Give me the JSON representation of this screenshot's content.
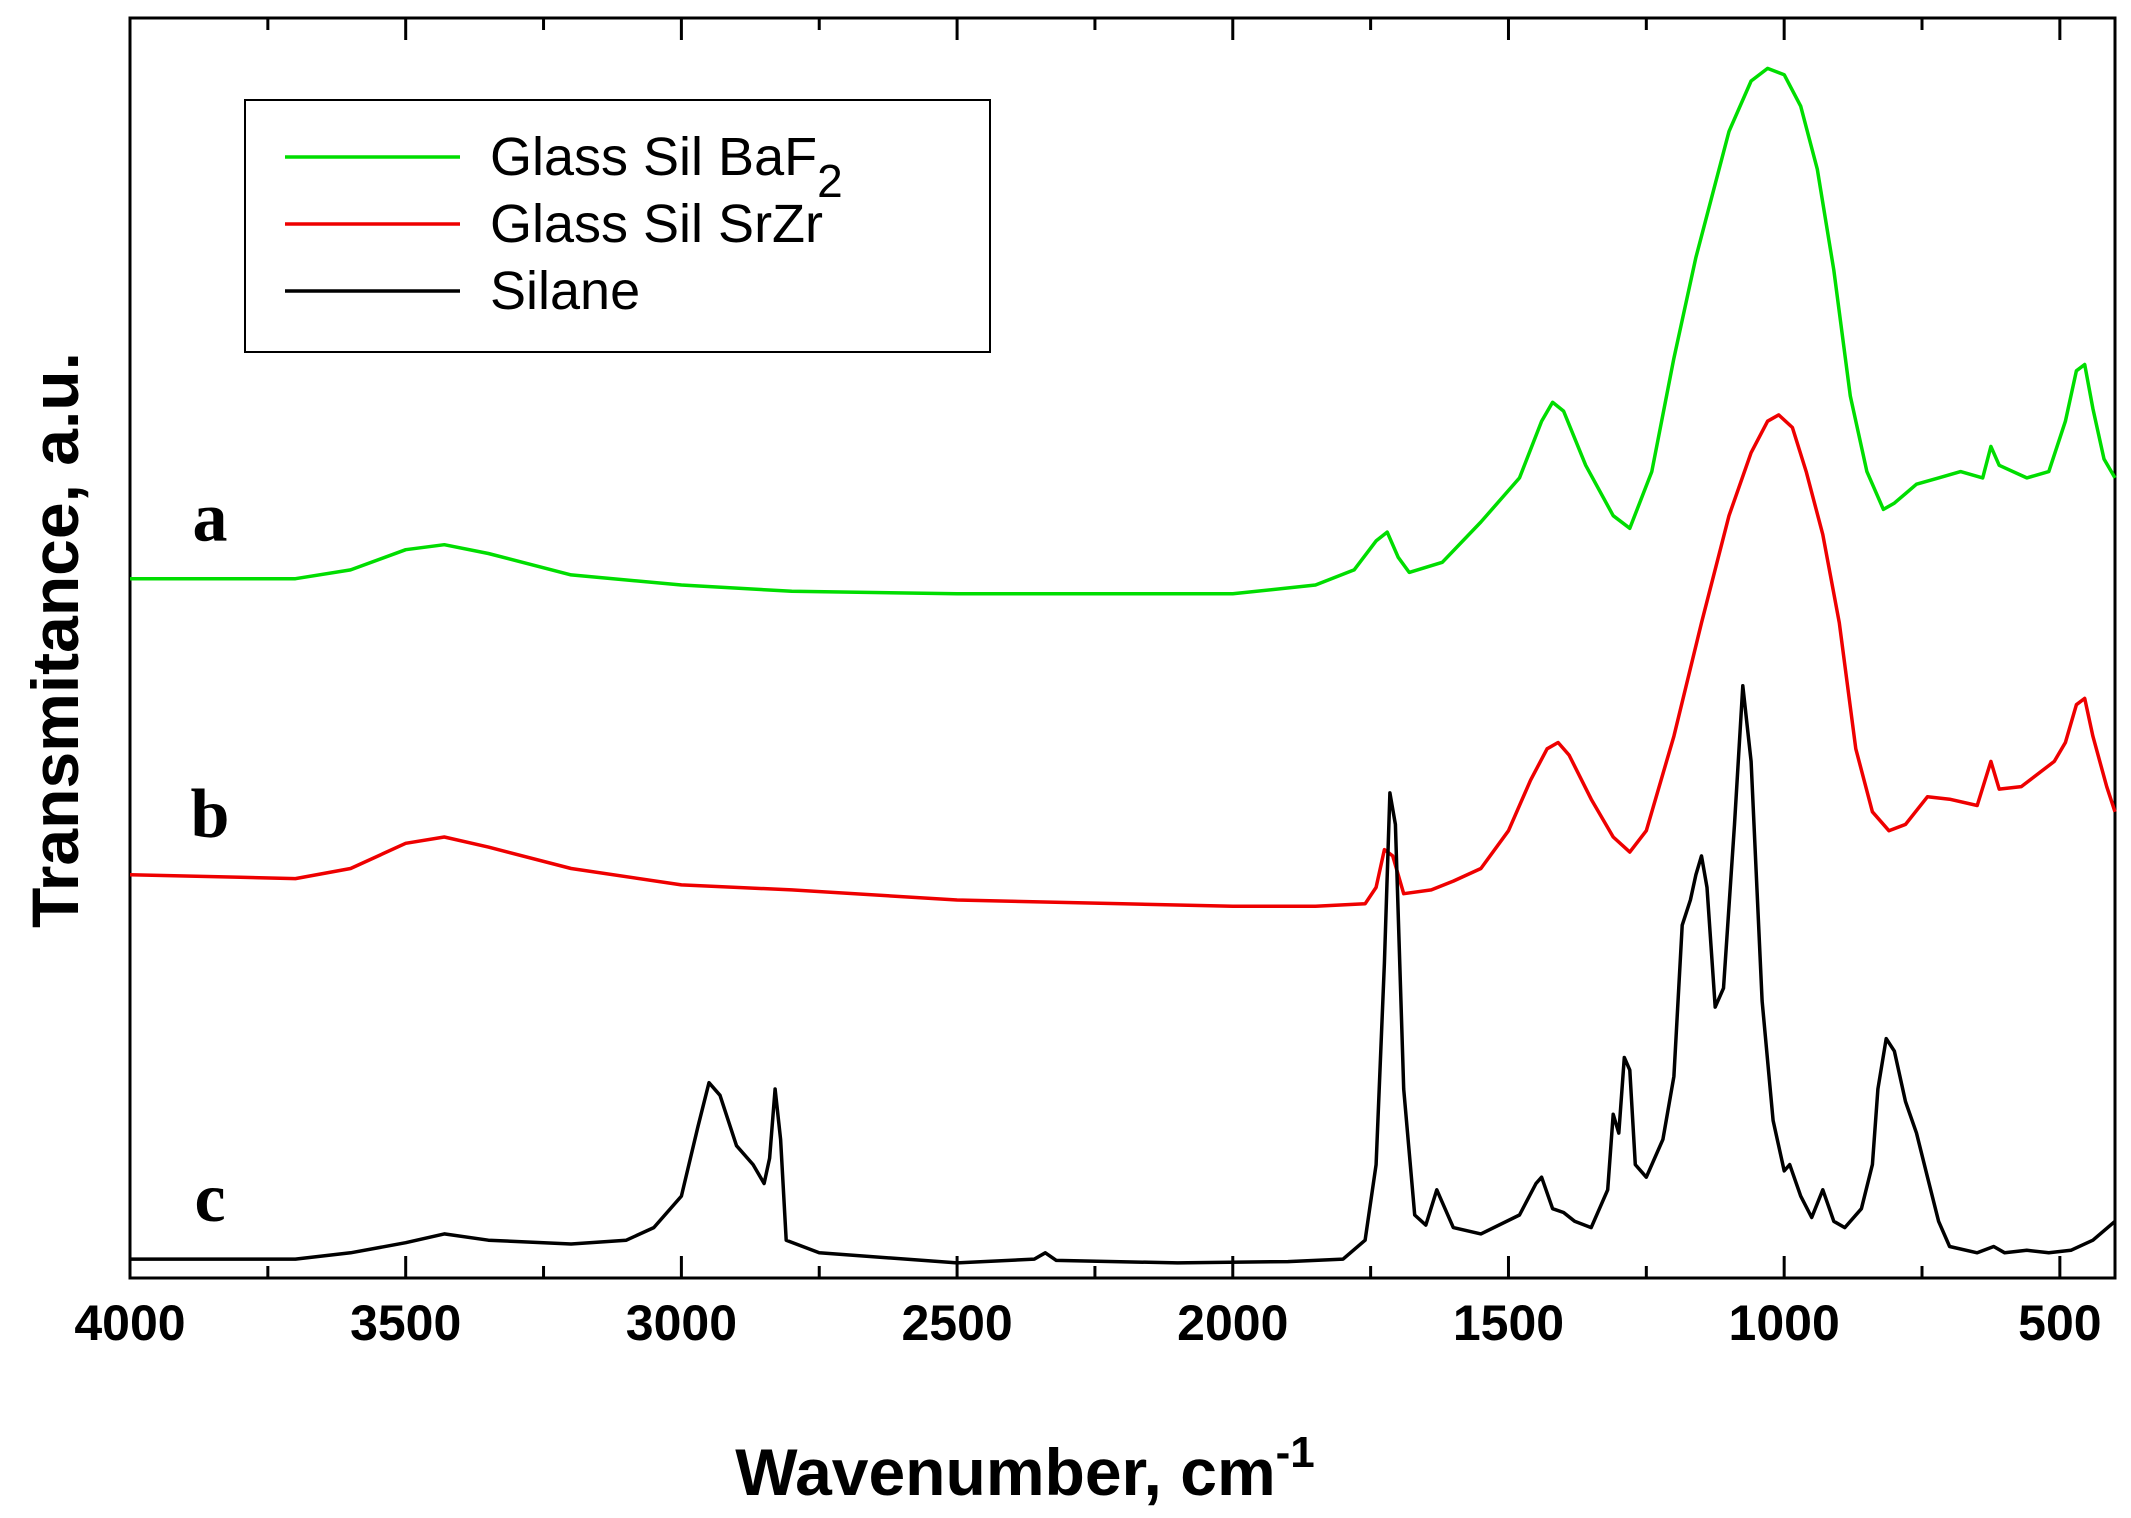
{
  "chart_data": {
    "type": "line",
    "title": "",
    "xlabel": "Wavenumber, cm",
    "xlabel_superscript": "-1",
    "ylabel": "Transmitance, a.u.",
    "xlim": [
      4000,
      400
    ],
    "ylim": [
      0,
      10
    ],
    "x_reversed": true,
    "grid": false,
    "legend_position": "top-left",
    "x_ticks": [
      4000,
      3500,
      3000,
      2500,
      2000,
      1500,
      1000,
      500
    ],
    "x_tick_labels": [
      "4000",
      "3500",
      "3000",
      "2500",
      "2000",
      "1500",
      "1000",
      "500"
    ],
    "series": [
      {
        "name": "Glass Sil BaF2",
        "legend_main": "Glass Sil BaF",
        "legend_sub": "2",
        "curve_label": "a",
        "color": "#00dd00",
        "points": [
          [
            4000,
            5.55
          ],
          [
            3800,
            5.55
          ],
          [
            3700,
            5.55
          ],
          [
            3600,
            5.62
          ],
          [
            3500,
            5.78
          ],
          [
            3430,
            5.82
          ],
          [
            3350,
            5.75
          ],
          [
            3200,
            5.58
          ],
          [
            3000,
            5.5
          ],
          [
            2800,
            5.45
          ],
          [
            2500,
            5.43
          ],
          [
            2200,
            5.43
          ],
          [
            2000,
            5.43
          ],
          [
            1850,
            5.5
          ],
          [
            1780,
            5.62
          ],
          [
            1740,
            5.85
          ],
          [
            1720,
            5.92
          ],
          [
            1700,
            5.72
          ],
          [
            1680,
            5.6
          ],
          [
            1620,
            5.68
          ],
          [
            1550,
            6.0
          ],
          [
            1480,
            6.35
          ],
          [
            1440,
            6.8
          ],
          [
            1420,
            6.95
          ],
          [
            1400,
            6.88
          ],
          [
            1360,
            6.45
          ],
          [
            1310,
            6.05
          ],
          [
            1280,
            5.95
          ],
          [
            1240,
            6.4
          ],
          [
            1200,
            7.3
          ],
          [
            1160,
            8.1
          ],
          [
            1100,
            9.1
          ],
          [
            1060,
            9.5
          ],
          [
            1030,
            9.6
          ],
          [
            1000,
            9.55
          ],
          [
            970,
            9.3
          ],
          [
            940,
            8.8
          ],
          [
            910,
            8.0
          ],
          [
            880,
            7.0
          ],
          [
            850,
            6.4
          ],
          [
            820,
            6.1
          ],
          [
            800,
            6.15
          ],
          [
            760,
            6.3
          ],
          [
            720,
            6.35
          ],
          [
            680,
            6.4
          ],
          [
            640,
            6.35
          ],
          [
            625,
            6.6
          ],
          [
            610,
            6.45
          ],
          [
            560,
            6.35
          ],
          [
            520,
            6.4
          ],
          [
            490,
            6.8
          ],
          [
            470,
            7.2
          ],
          [
            455,
            7.25
          ],
          [
            440,
            6.9
          ],
          [
            420,
            6.5
          ],
          [
            400,
            6.35
          ]
        ]
      },
      {
        "name": "Glass Sil SrZr",
        "legend_main": "Glass Sil SrZr",
        "legend_sub": "",
        "curve_label": "b",
        "color": "#ee0000",
        "points": [
          [
            4000,
            3.2
          ],
          [
            3800,
            3.18
          ],
          [
            3700,
            3.17
          ],
          [
            3600,
            3.25
          ],
          [
            3500,
            3.45
          ],
          [
            3430,
            3.5
          ],
          [
            3350,
            3.42
          ],
          [
            3200,
            3.25
          ],
          [
            3000,
            3.12
          ],
          [
            2800,
            3.08
          ],
          [
            2500,
            3.0
          ],
          [
            2200,
            2.97
          ],
          [
            2000,
            2.95
          ],
          [
            1850,
            2.95
          ],
          [
            1760,
            2.97
          ],
          [
            1740,
            3.1
          ],
          [
            1725,
            3.4
          ],
          [
            1710,
            3.35
          ],
          [
            1690,
            3.05
          ],
          [
            1640,
            3.08
          ],
          [
            1600,
            3.15
          ],
          [
            1550,
            3.25
          ],
          [
            1500,
            3.55
          ],
          [
            1460,
            3.95
          ],
          [
            1430,
            4.2
          ],
          [
            1410,
            4.25
          ],
          [
            1390,
            4.15
          ],
          [
            1350,
            3.8
          ],
          [
            1310,
            3.5
          ],
          [
            1280,
            3.38
          ],
          [
            1250,
            3.55
          ],
          [
            1200,
            4.3
          ],
          [
            1150,
            5.2
          ],
          [
            1100,
            6.05
          ],
          [
            1060,
            6.55
          ],
          [
            1030,
            6.8
          ],
          [
            1010,
            6.85
          ],
          [
            985,
            6.75
          ],
          [
            960,
            6.4
          ],
          [
            930,
            5.9
          ],
          [
            900,
            5.2
          ],
          [
            870,
            4.2
          ],
          [
            840,
            3.7
          ],
          [
            810,
            3.55
          ],
          [
            780,
            3.6
          ],
          [
            740,
            3.82
          ],
          [
            700,
            3.8
          ],
          [
            650,
            3.75
          ],
          [
            625,
            4.1
          ],
          [
            610,
            3.88
          ],
          [
            570,
            3.9
          ],
          [
            540,
            4.0
          ],
          [
            510,
            4.1
          ],
          [
            490,
            4.25
          ],
          [
            470,
            4.55
          ],
          [
            455,
            4.6
          ],
          [
            440,
            4.3
          ],
          [
            415,
            3.9
          ],
          [
            400,
            3.7
          ]
        ]
      },
      {
        "name": "Silane",
        "legend_main": "Silane",
        "legend_sub": "",
        "curve_label": "c",
        "color": "#000000",
        "points": [
          [
            4000,
            0.15
          ],
          [
            3800,
            0.15
          ],
          [
            3700,
            0.15
          ],
          [
            3600,
            0.2
          ],
          [
            3500,
            0.28
          ],
          [
            3430,
            0.35
          ],
          [
            3350,
            0.3
          ],
          [
            3200,
            0.27
          ],
          [
            3100,
            0.3
          ],
          [
            3050,
            0.4
          ],
          [
            3000,
            0.65
          ],
          [
            2970,
            1.2
          ],
          [
            2950,
            1.55
          ],
          [
            2930,
            1.45
          ],
          [
            2900,
            1.05
          ],
          [
            2870,
            0.9
          ],
          [
            2850,
            0.75
          ],
          [
            2840,
            0.95
          ],
          [
            2830,
            1.5
          ],
          [
            2820,
            1.1
          ],
          [
            2810,
            0.3
          ],
          [
            2750,
            0.2
          ],
          [
            2500,
            0.12
          ],
          [
            2360,
            0.15
          ],
          [
            2340,
            0.2
          ],
          [
            2320,
            0.14
          ],
          [
            2100,
            0.12
          ],
          [
            1900,
            0.13
          ],
          [
            1800,
            0.15
          ],
          [
            1760,
            0.3
          ],
          [
            1740,
            0.9
          ],
          [
            1725,
            2.5
          ],
          [
            1715,
            3.85
          ],
          [
            1705,
            3.6
          ],
          [
            1690,
            1.5
          ],
          [
            1670,
            0.5
          ],
          [
            1650,
            0.42
          ],
          [
            1630,
            0.7
          ],
          [
            1620,
            0.6
          ],
          [
            1600,
            0.4
          ],
          [
            1550,
            0.35
          ],
          [
            1480,
            0.5
          ],
          [
            1450,
            0.75
          ],
          [
            1440,
            0.8
          ],
          [
            1420,
            0.55
          ],
          [
            1400,
            0.52
          ],
          [
            1380,
            0.45
          ],
          [
            1350,
            0.4
          ],
          [
            1320,
            0.7
          ],
          [
            1310,
            1.3
          ],
          [
            1300,
            1.15
          ],
          [
            1290,
            1.75
          ],
          [
            1280,
            1.65
          ],
          [
            1270,
            0.9
          ],
          [
            1250,
            0.8
          ],
          [
            1220,
            1.1
          ],
          [
            1200,
            1.6
          ],
          [
            1185,
            2.8
          ],
          [
            1170,
            3.0
          ],
          [
            1160,
            3.2
          ],
          [
            1150,
            3.35
          ],
          [
            1140,
            3.1
          ],
          [
            1125,
            2.15
          ],
          [
            1110,
            2.3
          ],
          [
            1090,
            3.6
          ],
          [
            1075,
            4.7
          ],
          [
            1060,
            4.1
          ],
          [
            1040,
            2.2
          ],
          [
            1020,
            1.25
          ],
          [
            1000,
            0.85
          ],
          [
            990,
            0.9
          ],
          [
            970,
            0.65
          ],
          [
            950,
            0.48
          ],
          [
            930,
            0.7
          ],
          [
            910,
            0.45
          ],
          [
            890,
            0.4
          ],
          [
            860,
            0.55
          ],
          [
            840,
            0.9
          ],
          [
            830,
            1.5
          ],
          [
            815,
            1.9
          ],
          [
            800,
            1.8
          ],
          [
            780,
            1.4
          ],
          [
            760,
            1.15
          ],
          [
            740,
            0.8
          ],
          [
            720,
            0.45
          ],
          [
            700,
            0.25
          ],
          [
            650,
            0.2
          ],
          [
            620,
            0.25
          ],
          [
            600,
            0.2
          ],
          [
            560,
            0.22
          ],
          [
            520,
            0.2
          ],
          [
            480,
            0.22
          ],
          [
            440,
            0.3
          ],
          [
            400,
            0.45
          ]
        ]
      }
    ]
  }
}
